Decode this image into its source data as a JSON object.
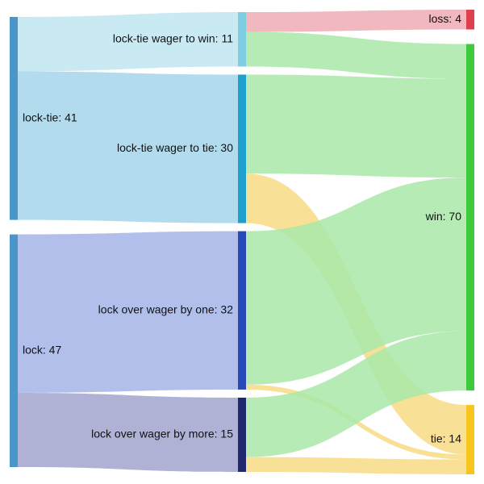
{
  "chart_data": {
    "type": "sankey",
    "columns": [
      [
        "lock-tie",
        "lock"
      ],
      [
        "lock-tie wager to win",
        "lock-tie wager to tie",
        "lock over wager by one",
        "lock over wager by more"
      ],
      [
        "loss",
        "win",
        "tie"
      ]
    ],
    "nodes": [
      {
        "name": "lock-tie",
        "label": "lock-tie: 41",
        "value": 41,
        "color": "#4a96c9"
      },
      {
        "name": "lock",
        "label": "lock: 47",
        "value": 47,
        "color": "#4a96c9"
      },
      {
        "name": "lock-tie wager to win",
        "label": "lock-tie wager to win: 11",
        "value": 11,
        "color": "#7ecde0"
      },
      {
        "name": "lock-tie wager to tie",
        "label": "lock-tie wager to tie: 30",
        "value": 30,
        "color": "#1f9fce"
      },
      {
        "name": "lock over wager by one",
        "label": "lock over wager by one: 32",
        "value": 32,
        "color": "#2949b8"
      },
      {
        "name": "lock over wager by more",
        "label": "lock over wager by more: 15",
        "value": 15,
        "color": "#1f2a6e"
      },
      {
        "name": "loss",
        "label": "loss: 4",
        "value": 4,
        "color": "#e0404e"
      },
      {
        "name": "win",
        "label": "win: 70",
        "value": 70,
        "color": "#3ec93e"
      },
      {
        "name": "tie",
        "label": "tie: 14",
        "value": 14,
        "color": "#f7c51e"
      }
    ],
    "links": [
      {
        "source": "lock-tie",
        "target": "lock-tie wager to win",
        "value": 11,
        "color": "#bfe6f0"
      },
      {
        "source": "lock-tie",
        "target": "lock-tie wager to tie",
        "value": 30,
        "color": "#a4d6ea"
      },
      {
        "source": "lock",
        "target": "lock over wager by one",
        "value": 32,
        "color": "#a3b4e6"
      },
      {
        "source": "lock",
        "target": "lock over wager by more",
        "value": 15,
        "color": "#a1a5cc"
      },
      {
        "source": "lock-tie wager to win",
        "target": "loss",
        "value": 4,
        "color": "#eeadb4"
      },
      {
        "source": "lock-tie wager to win",
        "target": "win",
        "value": 7,
        "color": "#a9e8a9"
      },
      {
        "source": "lock-tie wager to tie",
        "target": "win",
        "value": 20,
        "color": "#a9e8a9"
      },
      {
        "source": "lock-tie wager to tie",
        "target": "tie",
        "value": 10,
        "color": "#f8da85"
      },
      {
        "source": "lock over wager by one",
        "target": "win",
        "value": 31,
        "color": "#a9e8a9"
      },
      {
        "source": "lock over wager by one",
        "target": "tie",
        "value": 1,
        "color": "#f8da85"
      },
      {
        "source": "lock over wager by more",
        "target": "win",
        "value": 12,
        "color": "#a9e8a9"
      },
      {
        "source": "lock over wager by more",
        "target": "tie",
        "value": 3,
        "color": "#f8da85"
      }
    ]
  }
}
